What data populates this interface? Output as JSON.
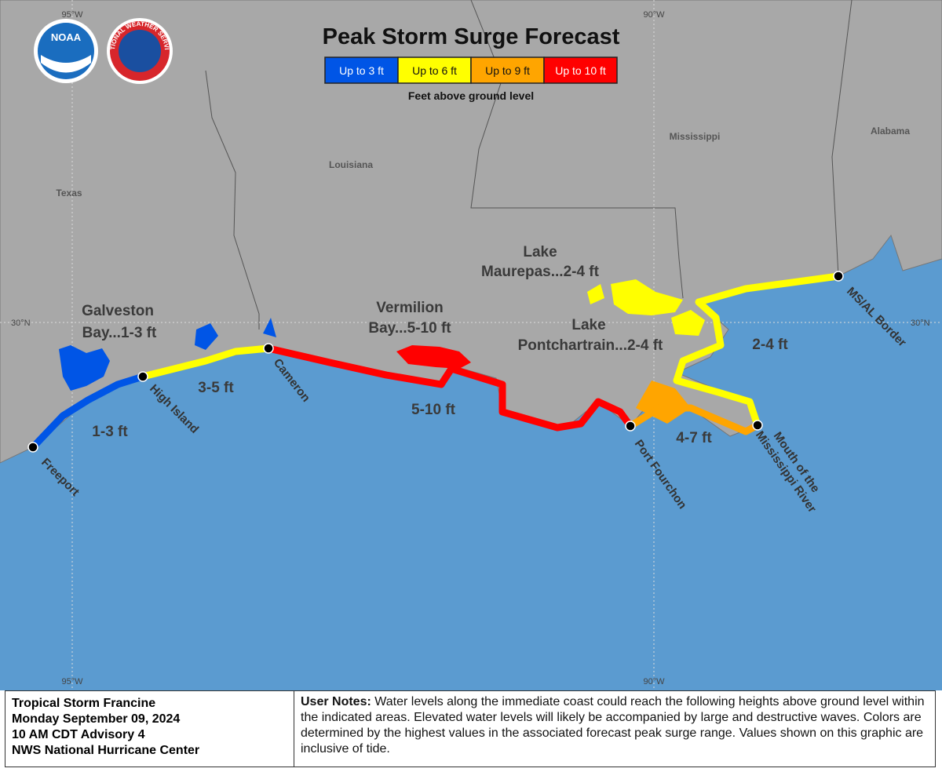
{
  "header": {
    "title": "Peak Storm Surge Forecast"
  },
  "logos": {
    "noaa": "NOAA",
    "nws": "NATIONAL WEATHER SERVICE"
  },
  "legend": {
    "items": [
      {
        "label": "Up to 3 ft",
        "color": "#0055e6"
      },
      {
        "label": "Up to 6 ft",
        "color": "#ffff00"
      },
      {
        "label": "Up to 9 ft",
        "color": "#ffa500"
      },
      {
        "label": "Up to 10 ft",
        "color": "#ff0000"
      }
    ],
    "caption": "Feet above ground level"
  },
  "graticule": {
    "top": [
      "95°W",
      "90°W"
    ],
    "bottom": [
      "95°W",
      "90°W"
    ],
    "left": "30°N",
    "right": "30°N"
  },
  "states": [
    "Texas",
    "Louisiana",
    "Mississippi",
    "Alabama"
  ],
  "zone_labels": [
    {
      "lines": [
        "Galveston",
        "Bay...1-3 ft"
      ]
    },
    {
      "lines": [
        "Vermilion",
        "Bay...5-10 ft"
      ]
    },
    {
      "lines": [
        "Lake",
        "Maurepas...2-4 ft"
      ]
    },
    {
      "lines": [
        "Lake",
        "Pontchartrain...2-4 ft"
      ]
    }
  ],
  "segment_labels": [
    "1-3 ft",
    "3-5 ft",
    "5-10 ft",
    "4-7 ft",
    "2-4 ft"
  ],
  "points": [
    {
      "lines": [
        "Freeport"
      ]
    },
    {
      "lines": [
        "High Island"
      ]
    },
    {
      "lines": [
        "Cameron"
      ]
    },
    {
      "lines": [
        "Port Fourchon"
      ]
    },
    {
      "lines": [
        "Mouth of the",
        "Mississippi River"
      ]
    },
    {
      "lines": [
        "MS/AL Border"
      ]
    }
  ],
  "footer": {
    "advisory": [
      "Tropical Storm Francine",
      "Monday September 09, 2024",
      "10 AM CDT Advisory 4",
      "NWS National Hurricane Center"
    ],
    "notes_label": "User Notes:",
    "notes_text": "Water levels along the immediate coast could reach the following heights above ground level within the indicated areas. Elevated water levels will likely be accompanied by large and destructive waves. Colors are determined by the highest values in the associated forecast peak surge range. Values shown on this graphic are inclusive of tide."
  }
}
